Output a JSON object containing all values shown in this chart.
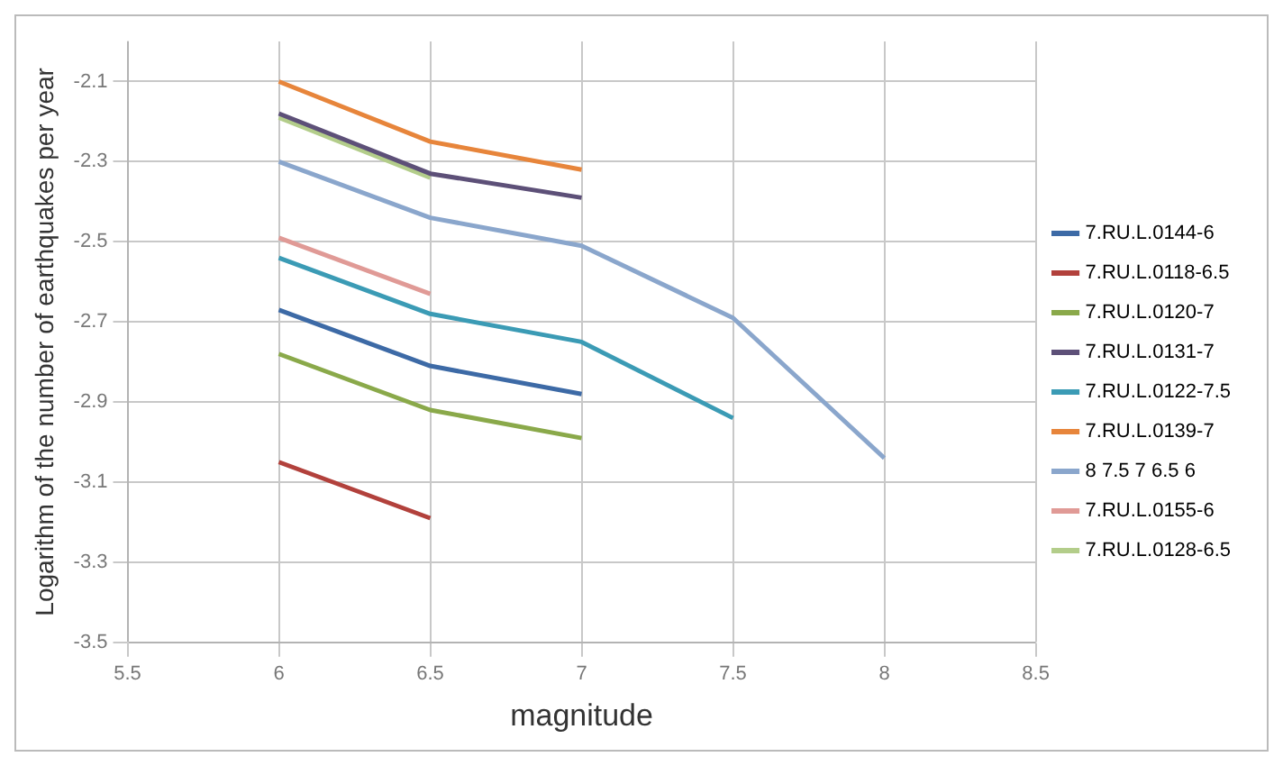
{
  "chart_data": {
    "type": "line",
    "xlabel": "magnitude",
    "ylabel": "Logarithm of the number of earthquakes per year",
    "x": [
      6,
      6.5,
      7,
      7.5,
      8
    ],
    "xlim": [
      5.5,
      8.5
    ],
    "xticks": [
      5.5,
      6,
      6.5,
      7,
      7.5,
      8,
      8.5
    ],
    "ylim": [
      -3.5,
      -2.0
    ],
    "yticks": [
      -3.5,
      -3.3,
      -3.1,
      -2.9,
      -2.7,
      -2.5,
      -2.3,
      -2.1
    ],
    "grid": true,
    "legend": "right",
    "marker": "none",
    "line_style": "solid",
    "series": [
      {
        "name": "7.RU.L.0144-6",
        "color": "#3d6aa6",
        "values": [
          -2.67,
          -2.81,
          -2.88,
          null,
          null
        ]
      },
      {
        "name": "7.RU.L.0118-6.5",
        "color": "#b2413c",
        "values": [
          -3.05,
          -3.19,
          null,
          null,
          null
        ]
      },
      {
        "name": "7.RU.L.0120-7",
        "color": "#8aa94a",
        "values": [
          -2.78,
          -2.92,
          -2.99,
          null,
          null
        ]
      },
      {
        "name": "7.RU.L.0131-7",
        "color": "#5d5078",
        "values": [
          -2.18,
          -2.33,
          -2.39,
          null,
          null
        ]
      },
      {
        "name": "7.RU.L.0122-7.5",
        "color": "#3b9bb5",
        "values": [
          -2.54,
          -2.68,
          -2.75,
          -2.94,
          null
        ]
      },
      {
        "name": "7.RU.L.0139-7",
        "color": "#e7853b",
        "values": [
          -2.1,
          -2.25,
          -2.32,
          null,
          null
        ]
      },
      {
        "name": "8 7.5 7 6.5 6",
        "color": "#8aa6cc",
        "values": [
          -2.3,
          -2.44,
          -2.51,
          -2.69,
          -3.04
        ]
      },
      {
        "name": "7.RU.L.0155-6",
        "color": "#e09a96",
        "values": [
          -2.49,
          -2.63,
          null,
          null,
          null
        ]
      },
      {
        "name": "7.RU.L.0128-6.5",
        "color": "#b3cd8a",
        "values": [
          -2.19,
          -2.34,
          null,
          null,
          null
        ]
      }
    ]
  }
}
